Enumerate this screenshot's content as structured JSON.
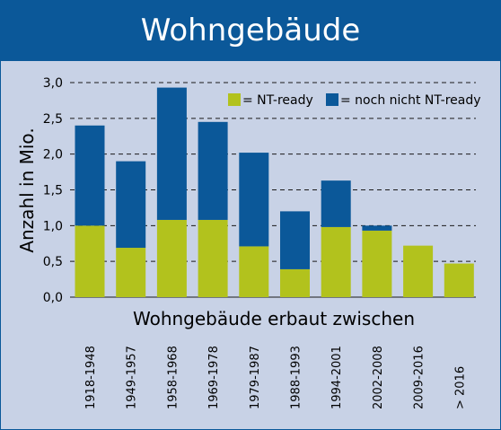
{
  "title": "Wohngebäude",
  "colors": {
    "header": "#0b5899",
    "background": "#c8d2e6",
    "nt_ready": "#b2c21d",
    "not_ready": "#0b5899"
  },
  "chart_data": {
    "type": "bar",
    "stacked": true,
    "xlabel": "Wohngebäude erbaut zwischen",
    "ylabel": "Anzahl in Mio.",
    "ylim": [
      0,
      3.0
    ],
    "yticks": [
      "0,0",
      "0,5",
      "1,0",
      "1,5",
      "2,0",
      "2,5",
      "3,0"
    ],
    "grid": "horizontal dashed",
    "legend_position": "top-right",
    "categories": [
      "1918-1948",
      "1949-1957",
      "1958-1968",
      "1969-1978",
      "1979-1987",
      "1988-1993",
      "1994-2001",
      "2002-2008",
      "2009-2016",
      "> 2016"
    ],
    "series": [
      {
        "name": "= NT-ready",
        "color": "#b2c21d",
        "values": [
          1.0,
          0.69,
          1.08,
          1.08,
          0.71,
          0.39,
          0.98,
          0.93,
          0.72,
          0.47
        ]
      },
      {
        "name": "= noch nicht NT-ready",
        "color": "#0b5899",
        "values": [
          1.4,
          1.21,
          1.85,
          1.37,
          1.31,
          0.81,
          0.65,
          0.07,
          0,
          0
        ]
      }
    ]
  }
}
